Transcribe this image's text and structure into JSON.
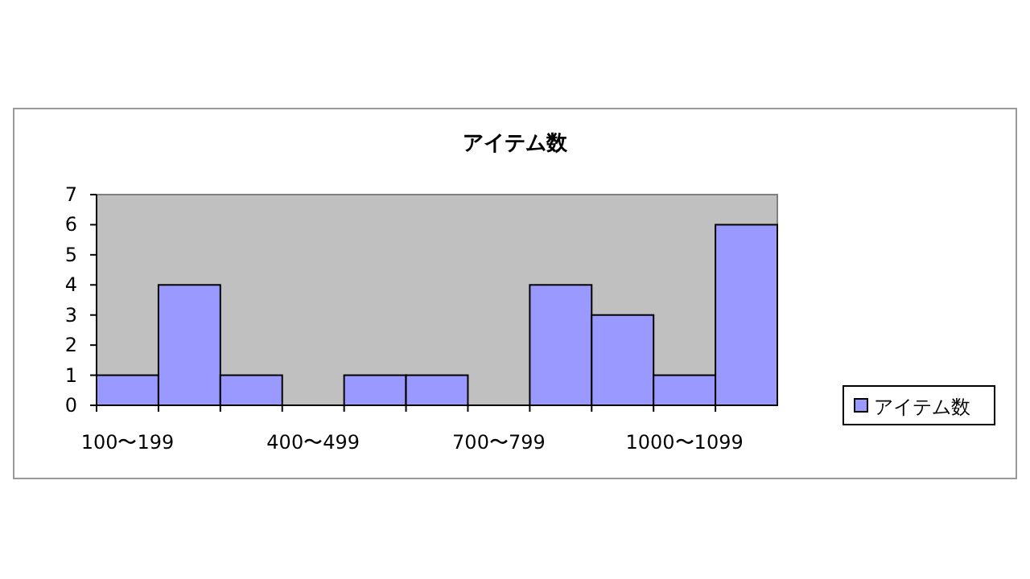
{
  "chart_data": {
    "type": "bar",
    "title": "アイテム数",
    "categories": [
      "100〜199",
      null,
      null,
      "400〜499",
      null,
      null,
      "700〜799",
      null,
      null,
      "1000〜1099",
      null
    ],
    "series": [
      {
        "name": "アイテム数",
        "color": "#9999ff",
        "values": [
          1,
          4,
          1,
          0,
          1,
          1,
          0,
          4,
          3,
          1,
          6
        ]
      }
    ],
    "ylim": [
      0,
      7
    ],
    "yticks": [
      0,
      1,
      2,
      3,
      4,
      5,
      6,
      7
    ],
    "legend": "right"
  }
}
